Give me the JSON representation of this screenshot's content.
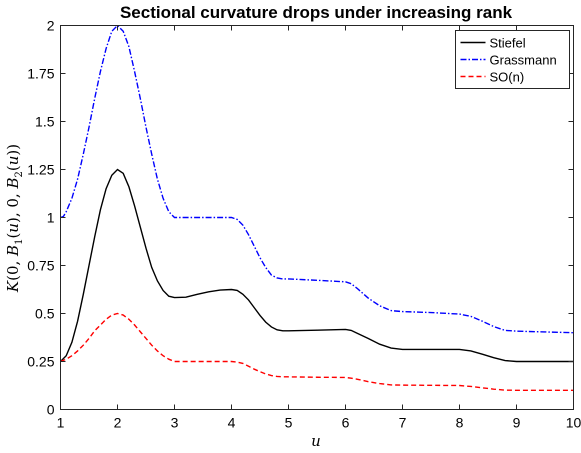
{
  "chart_data": {
    "type": "line",
    "title": "Sectional curvature drops under increasing rank",
    "xlabel": "u",
    "ylabel": "K(0, B_1(u), 0, B_2(u))",
    "xlim": [
      1,
      10
    ],
    "ylim": [
      0,
      2
    ],
    "xticks": [
      "1",
      "2",
      "3",
      "4",
      "5",
      "6",
      "7",
      "8",
      "9",
      "10"
    ],
    "yticks": [
      "0",
      "0.25",
      "0.5",
      "0.75",
      "1",
      "1.25",
      "1.5",
      "1.75",
      "2"
    ],
    "grid": false,
    "legend_position": "top-right",
    "series": [
      {
        "name": "Stiefel",
        "color": "#000000",
        "style": "solid",
        "points": [
          [
            1,
            0.25
          ],
          [
            1.1,
            0.28
          ],
          [
            1.2,
            0.35
          ],
          [
            1.3,
            0.46
          ],
          [
            1.4,
            0.6
          ],
          [
            1.5,
            0.75
          ],
          [
            1.6,
            0.9
          ],
          [
            1.7,
            1.04
          ],
          [
            1.8,
            1.15
          ],
          [
            1.9,
            1.22
          ],
          [
            2,
            1.25
          ],
          [
            2.1,
            1.23
          ],
          [
            2.2,
            1.16
          ],
          [
            2.3,
            1.06
          ],
          [
            2.4,
            0.95
          ],
          [
            2.5,
            0.84
          ],
          [
            2.6,
            0.74
          ],
          [
            2.7,
            0.67
          ],
          [
            2.8,
            0.62
          ],
          [
            2.9,
            0.59
          ],
          [
            3,
            0.583
          ],
          [
            3.2,
            0.585
          ],
          [
            3.4,
            0.6
          ],
          [
            3.6,
            0.613
          ],
          [
            3.8,
            0.622
          ],
          [
            4,
            0.625
          ],
          [
            4.1,
            0.62
          ],
          [
            4.2,
            0.6
          ],
          [
            4.3,
            0.57
          ],
          [
            4.4,
            0.53
          ],
          [
            4.5,
            0.49
          ],
          [
            4.6,
            0.455
          ],
          [
            4.7,
            0.43
          ],
          [
            4.8,
            0.415
          ],
          [
            4.9,
            0.41
          ],
          [
            5,
            0.41
          ],
          [
            5.5,
            0.413
          ],
          [
            6,
            0.417
          ],
          [
            6.1,
            0.412
          ],
          [
            6.2,
            0.398
          ],
          [
            6.4,
            0.37
          ],
          [
            6.6,
            0.34
          ],
          [
            6.8,
            0.32
          ],
          [
            7,
            0.313
          ],
          [
            7.5,
            0.313
          ],
          [
            8,
            0.313
          ],
          [
            8.2,
            0.305
          ],
          [
            8.4,
            0.288
          ],
          [
            8.6,
            0.27
          ],
          [
            8.8,
            0.255
          ],
          [
            9,
            0.25
          ],
          [
            9.5,
            0.25
          ],
          [
            10,
            0.25
          ]
        ]
      },
      {
        "name": "Grassmann",
        "color": "#0000ff",
        "style": "dashdot",
        "points": [
          [
            1,
            1
          ],
          [
            1.05,
            1.005
          ],
          [
            1.1,
            1.03
          ],
          [
            1.2,
            1.1
          ],
          [
            1.3,
            1.2
          ],
          [
            1.4,
            1.33
          ],
          [
            1.5,
            1.47
          ],
          [
            1.6,
            1.62
          ],
          [
            1.7,
            1.76
          ],
          [
            1.8,
            1.88
          ],
          [
            1.9,
            1.97
          ],
          [
            2,
            2
          ],
          [
            2.1,
            1.97
          ],
          [
            2.2,
            1.89
          ],
          [
            2.3,
            1.76
          ],
          [
            2.4,
            1.62
          ],
          [
            2.5,
            1.47
          ],
          [
            2.6,
            1.33
          ],
          [
            2.7,
            1.2
          ],
          [
            2.8,
            1.1
          ],
          [
            2.9,
            1.03
          ],
          [
            3,
            1
          ],
          [
            3.5,
            1
          ],
          [
            4,
            1
          ],
          [
            4.1,
            0.99
          ],
          [
            4.2,
            0.96
          ],
          [
            4.3,
            0.91
          ],
          [
            4.4,
            0.85
          ],
          [
            4.5,
            0.79
          ],
          [
            4.6,
            0.74
          ],
          [
            4.7,
            0.7
          ],
          [
            4.8,
            0.685
          ],
          [
            4.9,
            0.68
          ],
          [
            5,
            0.68
          ],
          [
            5.5,
            0.673
          ],
          [
            6,
            0.665
          ],
          [
            6.1,
            0.655
          ],
          [
            6.2,
            0.632
          ],
          [
            6.4,
            0.58
          ],
          [
            6.6,
            0.54
          ],
          [
            6.8,
            0.515
          ],
          [
            7,
            0.51
          ],
          [
            7.5,
            0.505
          ],
          [
            8,
            0.497
          ],
          [
            8.2,
            0.485
          ],
          [
            8.4,
            0.46
          ],
          [
            8.6,
            0.432
          ],
          [
            8.8,
            0.412
          ],
          [
            9,
            0.408
          ],
          [
            9.5,
            0.404
          ],
          [
            10,
            0.4
          ]
        ]
      },
      {
        "name": "SO(n)",
        "color": "#ff0000",
        "style": "dashed",
        "points": [
          [
            1,
            0.25
          ],
          [
            1.1,
            0.262
          ],
          [
            1.2,
            0.28
          ],
          [
            1.3,
            0.305
          ],
          [
            1.4,
            0.335
          ],
          [
            1.5,
            0.37
          ],
          [
            1.6,
            0.41
          ],
          [
            1.7,
            0.44
          ],
          [
            1.8,
            0.47
          ],
          [
            1.9,
            0.492
          ],
          [
            2,
            0.5
          ],
          [
            2.1,
            0.492
          ],
          [
            2.2,
            0.47
          ],
          [
            2.3,
            0.44
          ],
          [
            2.4,
            0.405
          ],
          [
            2.5,
            0.37
          ],
          [
            2.6,
            0.335
          ],
          [
            2.7,
            0.305
          ],
          [
            2.8,
            0.28
          ],
          [
            2.9,
            0.262
          ],
          [
            3,
            0.25
          ],
          [
            3.5,
            0.25
          ],
          [
            4,
            0.25
          ],
          [
            4.1,
            0.247
          ],
          [
            4.2,
            0.24
          ],
          [
            4.3,
            0.225
          ],
          [
            4.4,
            0.21
          ],
          [
            4.5,
            0.197
          ],
          [
            4.6,
            0.185
          ],
          [
            4.7,
            0.177
          ],
          [
            4.8,
            0.172
          ],
          [
            4.9,
            0.17
          ],
          [
            5,
            0.17
          ],
          [
            5.5,
            0.168
          ],
          [
            6,
            0.167
          ],
          [
            6.1,
            0.163
          ],
          [
            6.2,
            0.158
          ],
          [
            6.4,
            0.145
          ],
          [
            6.6,
            0.135
          ],
          [
            6.8,
            0.128
          ],
          [
            7,
            0.127
          ],
          [
            7.5,
            0.126
          ],
          [
            8,
            0.125
          ],
          [
            8.2,
            0.12
          ],
          [
            8.4,
            0.113
          ],
          [
            8.6,
            0.106
          ],
          [
            8.8,
            0.101
          ],
          [
            9,
            0.1
          ],
          [
            9.5,
            0.1
          ],
          [
            10,
            0.1
          ]
        ]
      }
    ]
  }
}
